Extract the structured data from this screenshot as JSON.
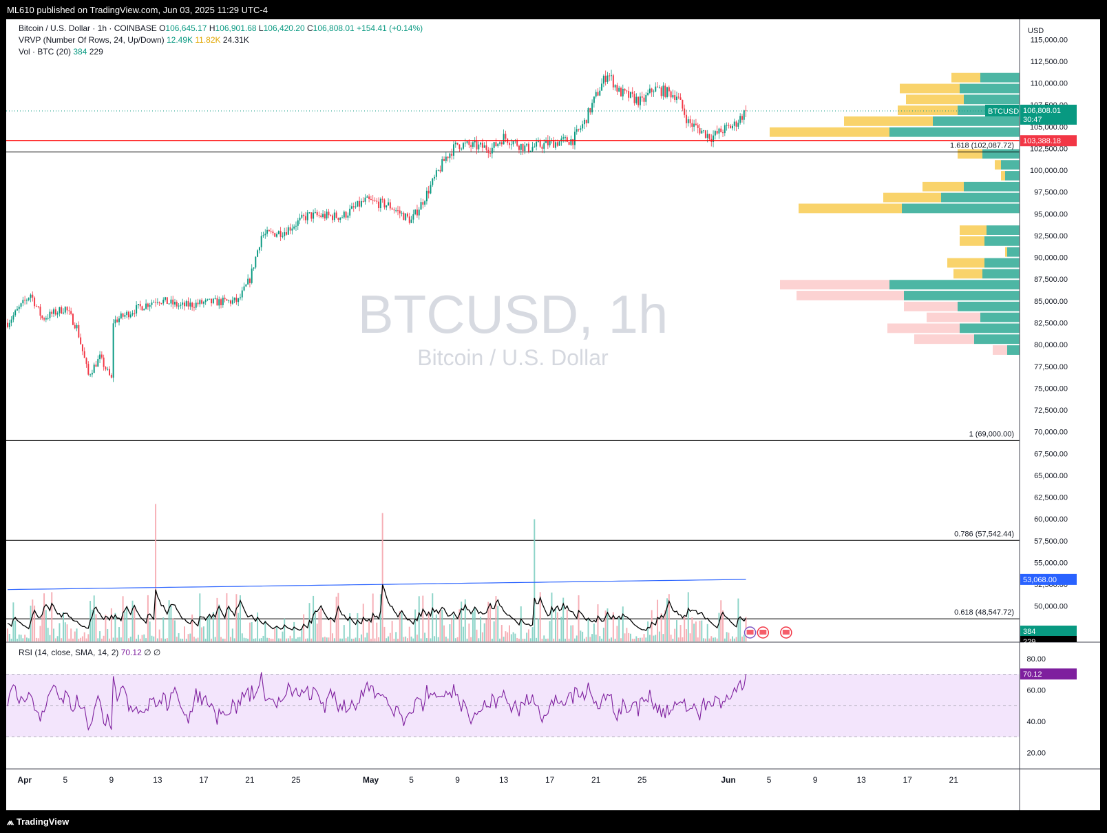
{
  "header": {
    "published": "ML610 published on TradingView.com, Jun 03, 2025 11:29 UTC-4"
  },
  "footer": {
    "logo_text": "TradingView"
  },
  "legend": {
    "symbol": "Bitcoin / U.S. Dollar · 1h · COINBASE",
    "ohlc": [
      {
        "k": "O",
        "v": "106,645.17"
      },
      {
        "k": "H",
        "v": "106,901.68"
      },
      {
        "k": "L",
        "v": "106,420.20"
      },
      {
        "k": "C",
        "v": "106,808.01"
      }
    ],
    "change": "+154.41 (+0.14%)",
    "vrvp_label": "VRVP (Number Of Rows, 24, Up/Down)",
    "vrvp_up": "12.49K",
    "vrvp_down": "11.82K",
    "vrvp_total": "24.31K",
    "vol_label": "Vol · BTC (20)",
    "vol_value": "384",
    "vol_ma": "229",
    "rsi_label": "RSI (14, close, SMA, 14, 2)",
    "rsi_value": "70.12",
    "rsi_extra": "∅ ∅"
  },
  "watermark": {
    "symbol": "BTCUSD, 1h",
    "name": "Bitcoin / U.S. Dollar"
  },
  "price_axis": {
    "currency": "USD",
    "ticks": [
      "115,000.00",
      "112,500.00",
      "110,000.00",
      "107,500.00",
      "105,000.00",
      "102,500.00",
      "100,000.00",
      "97,500.00",
      "95,000.00",
      "92,500.00",
      "90,000.00",
      "87,500.00",
      "85,000.00",
      "82,500.00",
      "80,000.00",
      "77,500.00",
      "75,000.00",
      "72,500.00",
      "70,000.00",
      "67,500.00",
      "65,000.00",
      "62,500.00",
      "60,000.00",
      "57,500.00",
      "55,000.00",
      "52,500.00",
      "50,000.00",
      "47,500.00"
    ]
  },
  "rsi_axis": {
    "ticks": [
      "80.00",
      "60.00",
      "40.00",
      "20.00"
    ]
  },
  "time_axis": {
    "labels": [
      "Apr",
      "5",
      "9",
      "13",
      "17",
      "21",
      "25",
      "May",
      "5",
      "9",
      "13",
      "17",
      "21",
      "25",
      "Jun",
      "5",
      "9",
      "13",
      "17",
      "21"
    ],
    "bold": [
      "Apr",
      "May",
      "Jun"
    ]
  },
  "badges": {
    "current_symbol": "BTCUSD",
    "current_price": "106,808.01",
    "countdown": "30:47",
    "line_price": "103,388.18",
    "ma_price": "53,068.00",
    "vol_value": "384",
    "vol_ma": "229",
    "rsi_value": "70.12"
  },
  "fib_levels": [
    {
      "label": "1.618 (102,087.72)",
      "price": 102087.72
    },
    {
      "label": "1 (69,000.00)",
      "price": 69000
    },
    {
      "label": "0.786 (57,542.44)",
      "price": 57542.44
    },
    {
      "label": "0.618 (48,547.72)",
      "price": 48547.72
    }
  ],
  "colors": {
    "up": "#089981",
    "down": "#f23645",
    "vrvp_up": "#4db6a4",
    "vrvp_down": "#f9d36b",
    "vrvp_down_low": "#fcd2d2",
    "hline": "#ff0000",
    "ma": "#2962ff",
    "rsi": "#7e1f9e",
    "rsi_band": "#f3e5fc"
  },
  "chart_data": {
    "type": "candlestick",
    "interval": "1h",
    "x_range": [
      "2025-03-31",
      "2025-06-26"
    ],
    "last_bar": "2025-06-03",
    "y_range": [
      46500,
      117000
    ],
    "price_points": [
      [
        "2025-03-31",
        82500
      ],
      [
        "2025-04-02",
        85800
      ],
      [
        "2025-04-03",
        83000
      ],
      [
        "2025-04-05",
        84200
      ],
      [
        "2025-04-06",
        82000
      ],
      [
        "2025-04-07",
        76500
      ],
      [
        "2025-04-08",
        78500
      ],
      [
        "2025-04-09",
        76000
      ],
      [
        "2025-04-09",
        82500
      ],
      [
        "2025-04-11",
        84000
      ],
      [
        "2025-04-13",
        85200
      ],
      [
        "2025-04-15",
        84400
      ],
      [
        "2025-04-17",
        84800
      ],
      [
        "2025-04-20",
        85000
      ],
      [
        "2025-04-21",
        87500
      ],
      [
        "2025-04-22",
        92500
      ],
      [
        "2025-04-24",
        93000
      ],
      [
        "2025-04-26",
        94800
      ],
      [
        "2025-04-29",
        94700
      ],
      [
        "2025-05-01",
        96500
      ],
      [
        "2025-05-03",
        96000
      ],
      [
        "2025-05-05",
        94200
      ],
      [
        "2025-05-06",
        96500
      ],
      [
        "2025-05-08",
        101500
      ],
      [
        "2025-05-09",
        103000
      ],
      [
        "2025-05-12",
        102500
      ],
      [
        "2025-05-13",
        103800
      ],
      [
        "2025-05-15",
        102500
      ],
      [
        "2025-05-17",
        103100
      ],
      [
        "2025-05-19",
        103500
      ],
      [
        "2025-05-20",
        105500
      ],
      [
        "2025-05-21",
        108500
      ],
      [
        "2025-05-22",
        111200
      ],
      [
        "2025-05-23",
        109000
      ],
      [
        "2025-05-25",
        107800
      ],
      [
        "2025-05-26",
        109400
      ],
      [
        "2025-05-28",
        108600
      ],
      [
        "2025-05-29",
        105500
      ],
      [
        "2025-05-31",
        103800
      ],
      [
        "2025-06-01",
        104600
      ],
      [
        "2025-06-02",
        105200
      ],
      [
        "2025-06-03",
        106808
      ]
    ],
    "horizontal_line": 103388.18,
    "volume_profile": {
      "rows": [
        {
          "price": 110625,
          "up": 1.9,
          "down": 1.4
        },
        {
          "price": 109375,
          "up": 2.9,
          "down": 2.9
        },
        {
          "price": 108125,
          "up": 2.7,
          "down": 2.8
        },
        {
          "price": 106875,
          "up": 3.0,
          "down": 2.9
        },
        {
          "price": 105625,
          "up": 4.2,
          "down": 4.3
        },
        {
          "price": 104375,
          "up": 6.3,
          "down": 5.8
        },
        {
          "price": 101875,
          "up": 1.8,
          "down": 1.2
        },
        {
          "price": 100625,
          "up": 0.9,
          "down": 0.3
        },
        {
          "price": 99375,
          "up": 0.7,
          "down": 0.2
        },
        {
          "price": 98125,
          "up": 2.7,
          "down": 2.0
        },
        {
          "price": 96875,
          "up": 3.8,
          "down": 2.8
        },
        {
          "price": 95625,
          "up": 5.7,
          "down": 5.0
        },
        {
          "price": 93125,
          "up": 1.6,
          "down": 1.3
        },
        {
          "price": 91875,
          "up": 1.7,
          "down": 1.2
        },
        {
          "price": 90625,
          "up": 0.6,
          "down": 0.1
        },
        {
          "price": 89375,
          "up": 1.7,
          "down": 1.8
        },
        {
          "price": 88125,
          "up": 1.8,
          "down": 1.4
        },
        {
          "price": 86875,
          "up": 6.3,
          "down": 5.3
        },
        {
          "price": 85625,
          "up": 5.6,
          "down": 5.2
        },
        {
          "price": 84375,
          "up": 3.0,
          "down": 2.6
        },
        {
          "price": 83125,
          "up": 1.9,
          "down": 2.6
        },
        {
          "price": 81875,
          "up": 2.9,
          "down": 3.5
        },
        {
          "price": 80625,
          "up": 2.2,
          "down": 2.9
        },
        {
          "price": 79375,
          "up": 0.6,
          "down": 0.7
        }
      ]
    },
    "volume_ma_value": 229,
    "ma_value": 53068,
    "rsi_range": [
      10,
      90
    ],
    "rsi_bands": [
      70,
      50,
      30
    ]
  }
}
